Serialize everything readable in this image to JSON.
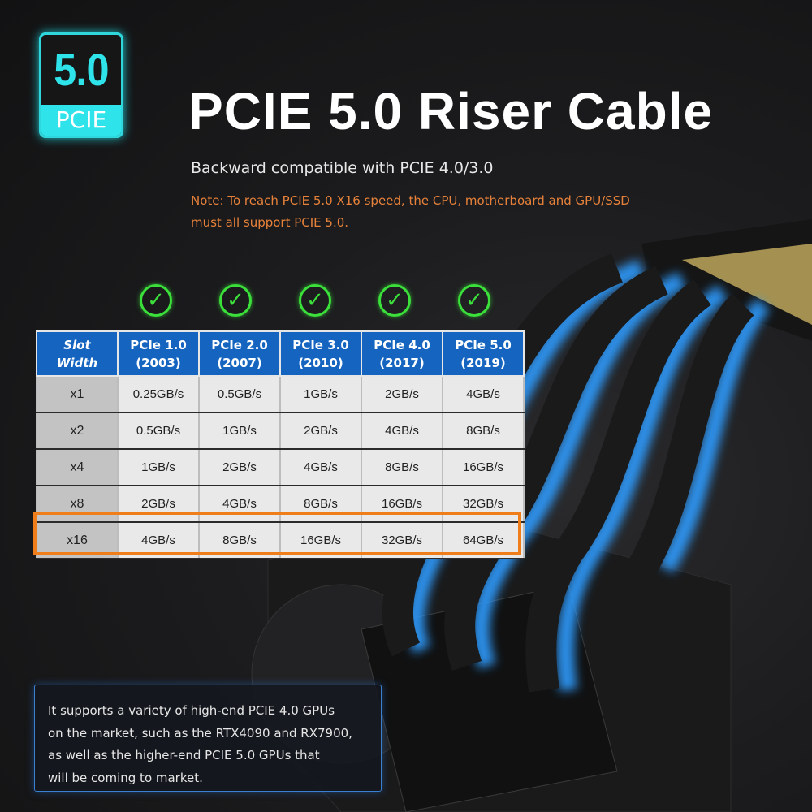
{
  "badge": {
    "number": "5.0",
    "label": "PCIE"
  },
  "title": "PCIE 5.0 Riser Cable",
  "subtitle": "Backward compatible with PCIE 4.0/3.0",
  "note_lines": [
    "Note: To reach PCIE 5.0 X16 speed, the CPU, motherboard and GPU/SSD",
    "must all support PCIE 5.0."
  ],
  "colors": {
    "accent_cyan": "#2fe3ea",
    "table_header": "#1565c0",
    "highlight": "#ef7d1a",
    "check": "#3be03b",
    "note": "#e8823a"
  },
  "check_icons": [
    "check-circle-icon",
    "check-circle-icon",
    "check-circle-icon",
    "check-circle-icon",
    "check-circle-icon"
  ],
  "table": {
    "header": [
      [
        "Slot",
        "Width"
      ],
      [
        "PCIe 1.0",
        "(2003)"
      ],
      [
        "PCIe 2.0",
        "(2007)"
      ],
      [
        "PCIe 3.0",
        "(2010)"
      ],
      [
        "PCIe 4.0",
        "(2017)"
      ],
      [
        "PCIe 5.0",
        "(2019)"
      ]
    ],
    "rows": [
      [
        "x1",
        "0.25GB/s",
        "0.5GB/s",
        "1GB/s",
        "2GB/s",
        "4GB/s"
      ],
      [
        "x2",
        "0.5GB/s",
        "1GB/s",
        "2GB/s",
        "4GB/s",
        "8GB/s"
      ],
      [
        "x4",
        "1GB/s",
        "2GB/s",
        "4GB/s",
        "8GB/s",
        "16GB/s"
      ],
      [
        "x8",
        "2GB/s",
        "4GB/s",
        "8GB/s",
        "16GB/s",
        "32GB/s"
      ],
      [
        "x16",
        "4GB/s",
        "8GB/s",
        "16GB/s",
        "32GB/s",
        "64GB/s"
      ]
    ],
    "highlighted_row": "x16"
  },
  "info_lines": [
    "It supports a variety of high-end PCIE 4.0 GPUs",
    "on the market, such as the RTX4090 and RX7900,",
    "as well as the higher-end PCIE 5.0 GPUs that",
    "will be coming to market."
  ]
}
